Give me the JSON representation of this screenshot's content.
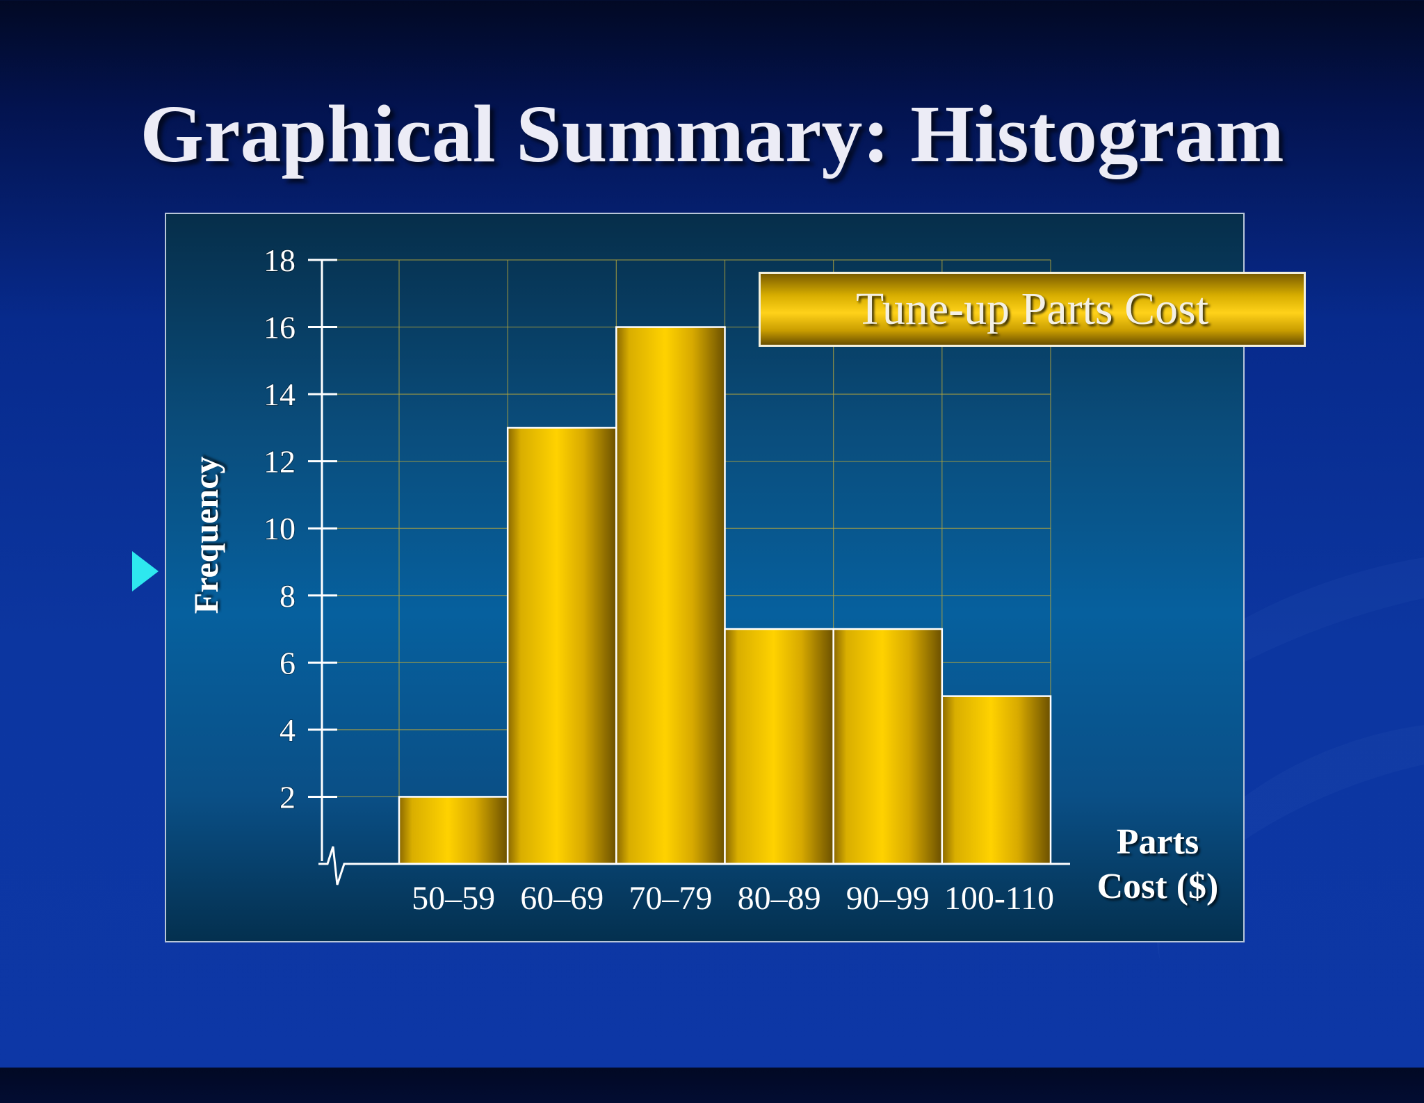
{
  "slide": {
    "title": "Graphical Summary: Histogram"
  },
  "colors": {
    "background": "#0c36a0",
    "panel": "#06609e",
    "bar": "#ffcc00",
    "bullet": "#2ee8ef",
    "gridline": "#b4a63c"
  },
  "chart_data": {
    "type": "bar",
    "title": "Tune-up Parts Cost",
    "ylabel": "Frequency",
    "xlabel_lines": [
      "Parts",
      "Cost ($)"
    ],
    "categories": [
      "50–59",
      "60–69",
      "70–79",
      "80–89",
      "90–99",
      "100-110"
    ],
    "values": [
      2,
      13,
      16,
      7,
      7,
      5
    ],
    "yticks": [
      "2",
      "4",
      "6",
      "8",
      "10",
      "12",
      "14",
      "16",
      "18"
    ],
    "ylim": [
      0,
      18
    ],
    "grid": true,
    "legend": "top-right",
    "axis_break": true
  }
}
